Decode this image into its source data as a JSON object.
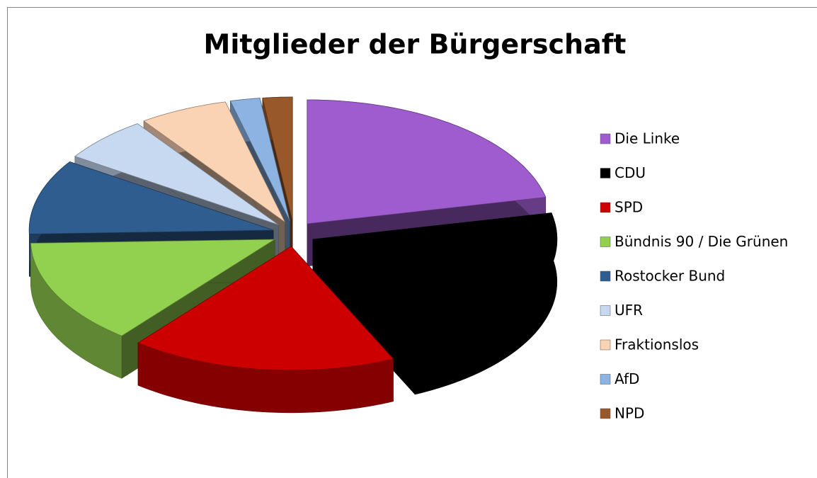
{
  "chart_data": {
    "type": "pie",
    "title": "Mitglieder der Bürgerschaft",
    "categories": [
      "Die Linke",
      "CDU",
      "SPD",
      "Bündnis 90 / Die Grünen",
      "Rostocker Bund",
      "UFR",
      "Fraktionslos",
      "AfD",
      "NPD"
    ],
    "values": [
      11,
      11,
      9,
      7,
      5,
      3,
      3,
      1,
      1
    ],
    "colors": [
      "#9e5ccf",
      "#000000",
      "#cc0000",
      "#92d050",
      "#2f5d8f",
      "#c6d9f0",
      "#fad3b4",
      "#8db3e2",
      "#99582a"
    ],
    "legend": "right"
  }
}
